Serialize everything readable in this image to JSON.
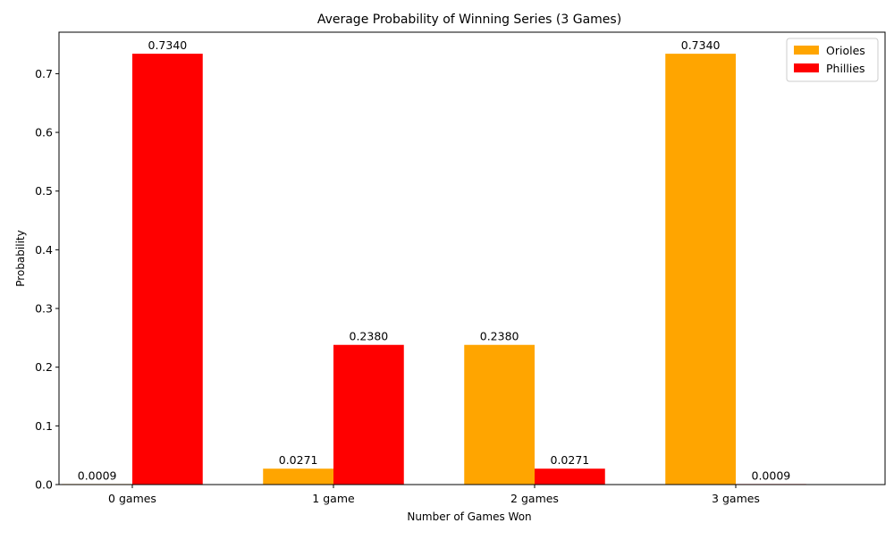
{
  "chart_data": {
    "type": "bar",
    "title": "Average Probability of Winning Series (3 Games)",
    "xlabel": "Number of Games Won",
    "ylabel": "Probability",
    "categories": [
      "0 games",
      "1 game",
      "2 games",
      "3 games"
    ],
    "series": [
      {
        "name": "Orioles",
        "color": "#ffa500",
        "values": [
          0.0009,
          0.0271,
          0.238,
          0.734
        ],
        "labels": [
          "0.0009",
          "0.0271",
          "0.2380",
          "0.7340"
        ]
      },
      {
        "name": "Phillies",
        "color": "#ff0000",
        "values": [
          0.734,
          0.238,
          0.0271,
          0.0009
        ],
        "labels": [
          "0.7340",
          "0.2380",
          "0.0271",
          "0.0009"
        ]
      }
    ],
    "ylim": [
      0,
      0.7707
    ],
    "yticks": [
      0.0,
      0.1,
      0.2,
      0.3,
      0.4,
      0.5,
      0.6,
      0.7
    ],
    "ytick_labels": [
      "0.0",
      "0.1",
      "0.2",
      "0.3",
      "0.4",
      "0.5",
      "0.6",
      "0.7"
    ],
    "legend_position": "top-right",
    "grid": false
  }
}
